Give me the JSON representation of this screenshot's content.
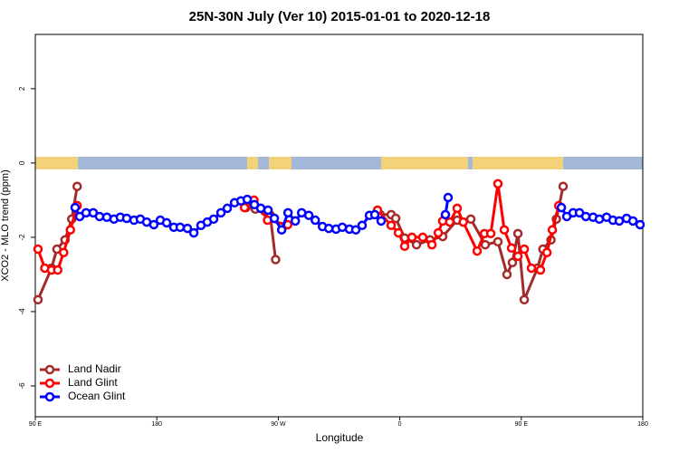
{
  "chart_data": {
    "type": "line",
    "title": "25N-30N July (Ver 10)   2015-01-01 to 2020-12-18",
    "x_label": "Longitude",
    "y_label": "XCO2 - MLO trend (ppm)",
    "xlim": [
      90,
      540
    ],
    "xticks": [
      {
        "value": 90,
        "label": "90 E"
      },
      180,
      {
        "value": 270,
        "label": "90 W"
      },
      {
        "value": 360,
        "label": "0"
      },
      {
        "value": 450,
        "label": "90 E"
      },
      {
        "value": 540,
        "label": "180"
      }
    ],
    "ylim": [
      -6.83,
      3.46
    ],
    "yticks": [
      -6,
      -4,
      -2,
      0,
      2
    ],
    "legend": "bottom-left",
    "series": [
      {
        "name": "Land Nadir",
        "color": "#a52a2a",
        "x": [
          92,
          102,
          106,
          112,
          117,
          121,
          null,
          246,
          253,
          260,
          264,
          268,
          null,
          345.5,
          353.6,
          357,
          363.6,
          372.4,
          382.4,
          391.8,
          402.5,
          412.6,
          423.3,
          432.7,
          439.4,
          443.4,
          447.5,
          452.2,
          462,
          466,
          472,
          476,
          481
        ],
        "values": [
          -3.68,
          -2.83,
          -2.32,
          -2.07,
          -1.51,
          -0.63,
          null,
          -1.2,
          -1.24,
          -1.3,
          -1.4,
          -2.6,
          null,
          -1.39,
          -1.39,
          -1.49,
          -2.02,
          -2.2,
          -2.07,
          -1.98,
          -1.54,
          -1.51,
          -2.2,
          -2.12,
          -3.0,
          -2.68,
          -1.9,
          -3.68,
          -2.83,
          -2.32,
          -2.07,
          -1.51,
          -0.63
        ]
      },
      {
        "name": "Land Glint",
        "color": "#ff0000",
        "x": [
          92,
          97,
          102,
          106.6,
          111,
          116,
          121,
          null,
          245,
          252,
          257,
          262,
          277,
          null,
          343.5,
          353.6,
          359,
          363.6,
          369,
          377,
          383.8,
          388.5,
          391.8,
          397,
          402.5,
          407,
          417.3,
          422.7,
          427.4,
          432.7,
          437.4,
          442.8,
          447.5,
          452.2,
          457.5,
          464.2,
          469,
          473,
          477.7
        ],
        "values": [
          -2.32,
          -2.83,
          -2.88,
          -2.88,
          -2.41,
          -1.8,
          -1.15,
          null,
          -1.2,
          -1.0,
          -1.22,
          -1.54,
          -1.66,
          null,
          -1.27,
          -1.68,
          -1.88,
          -2.24,
          -2.0,
          -2.0,
          -2.2,
          -1.88,
          -1.56,
          -1.59,
          -1.22,
          -1.59,
          -2.37,
          -1.9,
          -1.9,
          -0.56,
          -1.8,
          -2.29,
          -2.51,
          -2.32,
          -2.83,
          -2.88,
          -2.41,
          -1.8,
          -1.15
        ]
      },
      {
        "name": "Ocean Glint",
        "color": "#0000ff",
        "x": [
          119.5,
          122.9,
          127.6,
          132.9,
          137.6,
          143.0,
          148.3,
          153.0,
          157.7,
          163.1,
          167.8,
          172.5,
          177.8,
          182.6,
          187.3,
          192.6,
          197.3,
          202.7,
          207.4,
          212.7,
          217.4,
          222.1,
          227.5,
          232.2,
          237.6,
          242.3,
          247.0,
          252.3,
          257.0,
          262.4,
          267.1,
          272.5,
          277.2,
          282.6,
          287.3,
          292.6,
          297.4,
          302.7,
          307.4,
          312.8,
          317.4,
          322.7,
          327.4,
          332.1,
          337.5,
          341.5,
          346.2,
          null,
          393.8,
          395.8,
          null,
          479.7,
          483.7,
          488.4,
          493.1,
          497.8,
          503.2,
          507.8,
          513.2,
          517.9,
          522.6,
          528,
          532.7,
          538
        ],
        "values": [
          -1.2,
          -1.44,
          -1.34,
          -1.34,
          -1.44,
          -1.46,
          -1.51,
          -1.46,
          -1.49,
          -1.54,
          -1.51,
          -1.59,
          -1.66,
          -1.54,
          -1.61,
          -1.73,
          -1.73,
          -1.76,
          -1.88,
          -1.68,
          -1.59,
          -1.51,
          -1.34,
          -1.22,
          -1.07,
          -1.02,
          -0.98,
          -1.12,
          -1.22,
          -1.27,
          -1.49,
          -1.8,
          -1.34,
          -1.56,
          -1.34,
          -1.41,
          -1.54,
          -1.71,
          -1.76,
          -1.78,
          -1.73,
          -1.78,
          -1.8,
          -1.68,
          -1.41,
          -1.39,
          -1.56,
          null,
          -1.39,
          -0.93,
          null,
          -1.2,
          -1.44,
          -1.34,
          -1.34,
          -1.44,
          -1.46,
          -1.51,
          -1.46,
          -1.54,
          -1.56,
          -1.49,
          -1.56,
          -1.66
        ]
      }
    ]
  }
}
